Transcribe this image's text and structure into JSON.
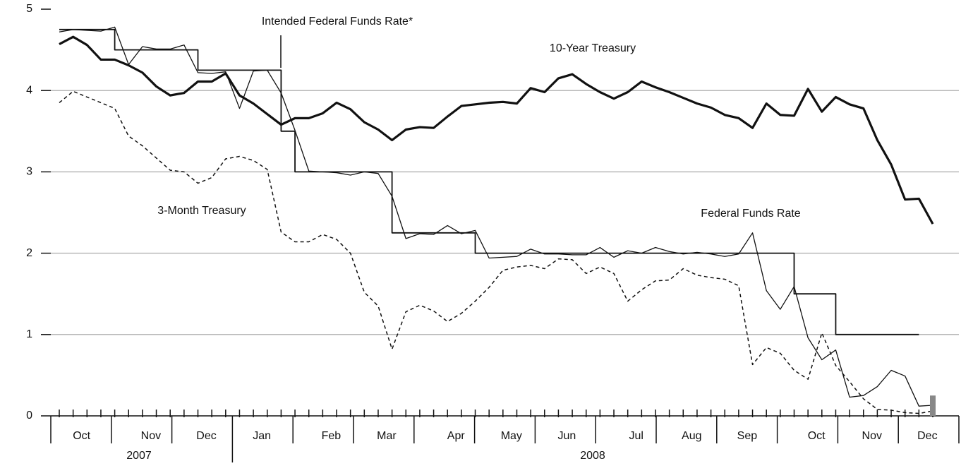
{
  "chart_data": {
    "type": "line",
    "categories": [
      null,
      "Oct",
      null,
      null,
      null,
      null,
      "Nov",
      null,
      null,
      null,
      "Dec",
      null,
      null,
      null,
      "Jan",
      null,
      null,
      null,
      null,
      "Feb",
      null,
      null,
      null,
      "Mar",
      null,
      null,
      null,
      null,
      "Apr",
      null,
      null,
      null,
      "May",
      null,
      null,
      null,
      "Jun",
      null,
      null,
      null,
      null,
      "Jul",
      null,
      null,
      null,
      "Aug",
      null,
      null,
      null,
      "Sep",
      null,
      null,
      null,
      null,
      "Oct",
      null,
      null,
      null,
      "Nov",
      null,
      null,
      null,
      "Dec",
      null
    ],
    "years": [
      "2007",
      "2008"
    ],
    "ylim": [
      0,
      5
    ],
    "yticks": [
      0,
      1,
      2,
      3,
      4,
      5
    ],
    "grid": true,
    "series": [
      {
        "name": "10-Year Treasury",
        "color": "#111111",
        "line_width": 3.2,
        "dashed": false,
        "step": false,
        "values": [
          4.57,
          4.66,
          4.56,
          4.38,
          4.38,
          4.31,
          4.22,
          4.05,
          3.94,
          3.97,
          4.11,
          4.11,
          4.21,
          3.94,
          3.84,
          3.71,
          3.58,
          3.66,
          3.66,
          3.72,
          3.85,
          3.77,
          3.61,
          3.52,
          3.39,
          3.52,
          3.55,
          3.54,
          3.68,
          3.81,
          3.83,
          3.85,
          3.86,
          3.84,
          4.03,
          3.98,
          4.15,
          4.2,
          4.08,
          3.98,
          3.9,
          3.98,
          4.11,
          4.04,
          3.98,
          3.91,
          3.84,
          3.79,
          3.7,
          3.66,
          3.54,
          3.84,
          3.7,
          3.69,
          4.02,
          3.74,
          3.92,
          3.83,
          3.78,
          3.39,
          3.09,
          2.66,
          2.67,
          2.36
        ]
      },
      {
        "name": "3-Month Treasury",
        "color": "#111111",
        "line_width": 1.5,
        "dashed": true,
        "step": false,
        "values": [
          3.85,
          3.99,
          3.92,
          3.85,
          3.78,
          3.44,
          3.32,
          3.17,
          3.02,
          3.0,
          2.86,
          2.93,
          3.16,
          3.19,
          3.14,
          3.03,
          2.26,
          2.14,
          2.14,
          2.23,
          2.17,
          2.0,
          1.52,
          1.35,
          0.82,
          1.28,
          1.36,
          1.29,
          1.16,
          1.26,
          1.41,
          1.58,
          1.79,
          1.83,
          1.85,
          1.81,
          1.93,
          1.92,
          1.75,
          1.83,
          1.75,
          1.41,
          1.55,
          1.66,
          1.67,
          1.81,
          1.73,
          1.7,
          1.68,
          1.6,
          0.63,
          0.84,
          0.77,
          0.56,
          0.45,
          1.02,
          0.62,
          0.42,
          0.21,
          0.08,
          0.07,
          0.04,
          0.03,
          0.06
        ]
      },
      {
        "name": "Federal Funds Rate",
        "color": "#111111",
        "line_width": 1.3,
        "dashed": false,
        "step": false,
        "values": [
          4.72,
          4.75,
          4.74,
          4.73,
          4.78,
          4.32,
          4.54,
          4.51,
          4.51,
          4.56,
          4.22,
          4.21,
          4.23,
          3.78,
          4.24,
          4.25,
          3.97,
          3.51,
          3.01,
          3.0,
          2.99,
          2.96,
          3.0,
          2.98,
          2.7,
          2.18,
          2.24,
          2.23,
          2.34,
          2.24,
          2.28,
          1.94,
          1.95,
          1.96,
          2.05,
          1.99,
          1.99,
          1.98,
          1.98,
          2.07,
          1.95,
          2.03,
          2.0,
          2.07,
          2.02,
          1.99,
          2.01,
          1.99,
          1.96,
          1.99,
          2.25,
          1.54,
          1.31,
          1.59,
          0.96,
          0.69,
          0.81,
          0.23,
          0.25,
          0.36,
          0.56,
          0.49,
          0.12,
          0.13
        ]
      },
      {
        "name": "Intended Federal Funds Rate*",
        "color": "#111111",
        "line_width": 1.8,
        "dashed": false,
        "step": true,
        "values": [
          4.75,
          4.75,
          4.75,
          4.75,
          4.5,
          4.5,
          4.5,
          4.5,
          4.5,
          4.5,
          4.25,
          4.25,
          4.25,
          4.25,
          4.25,
          4.25,
          3.5,
          3.0,
          3.0,
          3.0,
          3.0,
          3.0,
          3.0,
          3.0,
          2.25,
          2.25,
          2.25,
          2.25,
          2.25,
          2.25,
          2.0,
          2.0,
          2.0,
          2.0,
          2.0,
          2.0,
          2.0,
          2.0,
          2.0,
          2.0,
          2.0,
          2.0,
          2.0,
          2.0,
          2.0,
          2.0,
          2.0,
          2.0,
          2.0,
          2.0,
          2.0,
          2.0,
          2.0,
          1.5,
          1.5,
          1.5,
          1.0,
          1.0,
          1.0,
          1.0,
          1.0,
          1.0,
          1.0,
          null
        ]
      }
    ],
    "target_range": {
      "low": 0,
      "high": 0.25,
      "color": "#888888"
    }
  }
}
